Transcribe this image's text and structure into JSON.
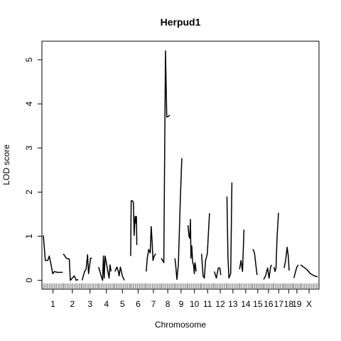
{
  "chart_data": {
    "type": "line",
    "title": "Herpud1",
    "xlabel": "Chromosome",
    "ylabel": "LOD score",
    "ylim": [
      -0.2,
      5.42
    ],
    "y_ticks": [
      0,
      1,
      2,
      3,
      4,
      5
    ],
    "grid": false,
    "legend": "none",
    "line_color": "#000000",
    "chromosomes": [
      {
        "label": "1",
        "start": 0,
        "length": 195
      },
      {
        "label": "2",
        "start": 202,
        "length": 182
      },
      {
        "label": "3",
        "start": 391,
        "length": 160
      },
      {
        "label": "4",
        "start": 558,
        "length": 157
      },
      {
        "label": "5",
        "start": 722,
        "length": 152
      },
      {
        "label": "6",
        "start": 881,
        "length": 150
      },
      {
        "label": "7",
        "start": 1038,
        "length": 145
      },
      {
        "label": "8",
        "start": 1190,
        "length": 130
      },
      {
        "label": "9",
        "start": 1327,
        "length": 125
      },
      {
        "label": "10",
        "start": 1459,
        "length": 130
      },
      {
        "label": "11",
        "start": 1596,
        "length": 122
      },
      {
        "label": "12",
        "start": 1725,
        "length": 120
      },
      {
        "label": "13",
        "start": 1852,
        "length": 120
      },
      {
        "label": "14",
        "start": 1979,
        "length": 125
      },
      {
        "label": "15",
        "start": 2111,
        "length": 104
      },
      {
        "label": "16",
        "start": 2222,
        "length": 98
      },
      {
        "label": "17",
        "start": 2327,
        "length": 95
      },
      {
        "label": "18",
        "start": 2429,
        "length": 91
      },
      {
        "label": "19",
        "start": 2527,
        "length": 61
      },
      {
        "label": "X",
        "start": 2595,
        "length": 171
      }
    ],
    "series": [
      {
        "chr": "1",
        "points": [
          [
            0,
            1.02
          ],
          [
            20,
            0.45
          ],
          [
            45,
            0.45
          ],
          [
            60,
            0.55
          ],
          [
            78,
            0.35
          ],
          [
            95,
            0.15
          ],
          [
            112,
            0.2
          ],
          [
            140,
            0.18
          ],
          [
            195,
            0.18
          ]
        ]
      },
      {
        "chr": "2",
        "points": [
          [
            0,
            0.6
          ],
          [
            30,
            0.5
          ],
          [
            60,
            0.48
          ],
          [
            70,
            0.0
          ],
          [
            90,
            0.05
          ],
          [
            110,
            0.1
          ],
          [
            130,
            0.0
          ],
          [
            150,
            0.02
          ]
        ]
      },
      {
        "chr": "3",
        "points": [
          [
            0,
            0.0
          ],
          [
            25,
            0.2
          ],
          [
            40,
            0.25
          ],
          [
            55,
            0.58
          ],
          [
            65,
            0.15
          ],
          [
            85,
            0.5
          ],
          [
            100,
            0.5
          ]
        ]
      },
      {
        "chr": "4",
        "points": [
          [
            0,
            0.3
          ],
          [
            25,
            0.1
          ],
          [
            40,
            0.0
          ],
          [
            48,
            0.55
          ],
          [
            56,
            0.05
          ],
          [
            65,
            0.55
          ],
          [
            85,
            0.3
          ],
          [
            105,
            0.05
          ],
          [
            115,
            0.35
          ],
          [
            125,
            0.2
          ]
        ]
      },
      {
        "chr": "5",
        "points": [
          [
            0,
            0.2
          ],
          [
            20,
            0.3
          ],
          [
            35,
            0.2
          ],
          [
            42,
            0.1
          ],
          [
            55,
            0.3
          ],
          [
            75,
            0.1
          ],
          [
            95,
            0.0
          ]
        ]
      },
      {
        "chr": "6",
        "points": [
          [
            0,
            0.55
          ],
          [
            5,
            1.8
          ],
          [
            20,
            1.8
          ],
          [
            28,
            1.75
          ],
          [
            35,
            1.02
          ],
          [
            45,
            1.45
          ],
          [
            52,
            1.3
          ],
          [
            58,
            1.45
          ],
          [
            62,
            0.8
          ]
        ]
      },
      {
        "chr": "7",
        "points": [
          [
            0,
            0.2
          ],
          [
            10,
            0.5
          ],
          [
            25,
            0.7
          ],
          [
            40,
            0.62
          ],
          [
            50,
            1.22
          ],
          [
            60,
            0.85
          ],
          [
            68,
            0.45
          ],
          [
            80,
            0.55
          ],
          [
            95,
            0.6
          ]
        ]
      },
      {
        "chr": "8",
        "points": [
          [
            0,
            0.5
          ],
          [
            25,
            0.4
          ],
          [
            42,
            5.2
          ],
          [
            55,
            3.7
          ],
          [
            75,
            3.72
          ],
          [
            85,
            3.75
          ]
        ]
      },
      {
        "chr": "9",
        "points": [
          [
            0,
            0.5
          ],
          [
            8,
            0.35
          ],
          [
            20,
            0.02
          ],
          [
            35,
            0.35
          ],
          [
            55,
            1.85
          ],
          [
            70,
            2.77
          ]
        ]
      },
      {
        "chr": "10",
        "points": [
          [
            0,
            1.25
          ],
          [
            10,
            1.0
          ],
          [
            18,
            0.95
          ],
          [
            25,
            1.38
          ],
          [
            30,
            0.5
          ],
          [
            38,
            0.78
          ],
          [
            48,
            0.4
          ],
          [
            56,
            0.35
          ],
          [
            64,
            0.15
          ],
          [
            70,
            0.4
          ],
          [
            75,
            0.35
          ],
          [
            82,
            0.2
          ]
        ]
      },
      {
        "chr": "11",
        "points": [
          [
            0,
            0.6
          ],
          [
            15,
            0.1
          ],
          [
            28,
            0.05
          ],
          [
            40,
            0.45
          ],
          [
            58,
            0.6
          ],
          [
            80,
            1.52
          ]
        ]
      },
      {
        "chr": "12",
        "points": [
          [
            0,
            0.2
          ],
          [
            20,
            0.05
          ],
          [
            40,
            0.28
          ],
          [
            55,
            0.28
          ],
          [
            65,
            0.12
          ]
        ]
      },
      {
        "chr": "13",
        "points": [
          [
            0,
            1.9
          ],
          [
            10,
            0.55
          ],
          [
            20,
            0.05
          ],
          [
            38,
            0.15
          ],
          [
            50,
            2.22
          ]
        ]
      },
      {
        "chr": "14",
        "points": [
          [
            0,
            0.25
          ],
          [
            15,
            0.45
          ],
          [
            30,
            0.2
          ],
          [
            45,
            1.15
          ]
        ]
      },
      {
        "chr": "15",
        "points": [
          [
            0,
            0.7
          ],
          [
            10,
            0.68
          ],
          [
            20,
            0.6
          ],
          [
            30,
            0.4
          ],
          [
            45,
            0.12
          ]
        ]
      },
      {
        "chr": "16",
        "points": [
          [
            0,
            0.02
          ],
          [
            20,
            0.1
          ],
          [
            40,
            0.28
          ],
          [
            55,
            0.05
          ],
          [
            70,
            0.3
          ],
          [
            80,
            0.35
          ]
        ]
      },
      {
        "chr": "17",
        "points": [
          [
            0,
            0.3
          ],
          [
            10,
            0.2
          ],
          [
            20,
            0.28
          ],
          [
            30,
            0.95
          ],
          [
            45,
            1.53
          ]
        ]
      },
      {
        "chr": "18",
        "points": [
          [
            0,
            0.28
          ],
          [
            15,
            0.45
          ],
          [
            30,
            0.75
          ],
          [
            42,
            0.55
          ],
          [
            50,
            0.22
          ]
        ]
      },
      {
        "chr": "19",
        "points": [
          [
            0,
            0.05
          ],
          [
            15,
            0.18
          ],
          [
            30,
            0.3
          ],
          [
            45,
            0.35
          ]
        ]
      },
      {
        "chr": "X",
        "points": [
          [
            0,
            0.35
          ],
          [
            30,
            0.3
          ],
          [
            60,
            0.25
          ],
          [
            100,
            0.15
          ],
          [
            140,
            0.1
          ],
          [
            171,
            0.08
          ]
        ]
      }
    ]
  }
}
